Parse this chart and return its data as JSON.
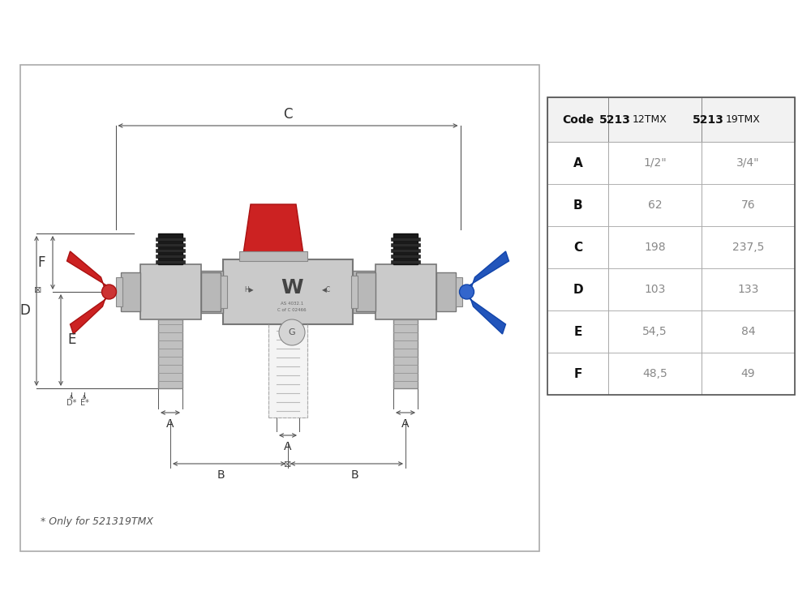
{
  "bg_color": "#ffffff",
  "valve_color": "#c8c8c8",
  "valve_edge": "#888888",
  "dark_color": "#aaaaaa",
  "red_color": "#cc2222",
  "blue_color": "#2255bb",
  "black_color": "#222222",
  "dim_color": "#555555",
  "text_color": "#333333",
  "table_header_bold": "#111111",
  "table_data_color": "#888888",
  "footnote_color": "#555555",
  "table": {
    "headers": [
      "Code",
      "521312TMX",
      "521319TMX"
    ],
    "rows": [
      [
        "A",
        "1/2\"",
        "3/4\""
      ],
      [
        "B",
        "62",
        "76"
      ],
      [
        "C",
        "198",
        "237,5"
      ],
      [
        "D",
        "103",
        "133"
      ],
      [
        "E",
        "54,5",
        "84"
      ],
      [
        "F",
        "48,5",
        "49"
      ]
    ]
  },
  "footnote": "* Only for 521319TMX"
}
